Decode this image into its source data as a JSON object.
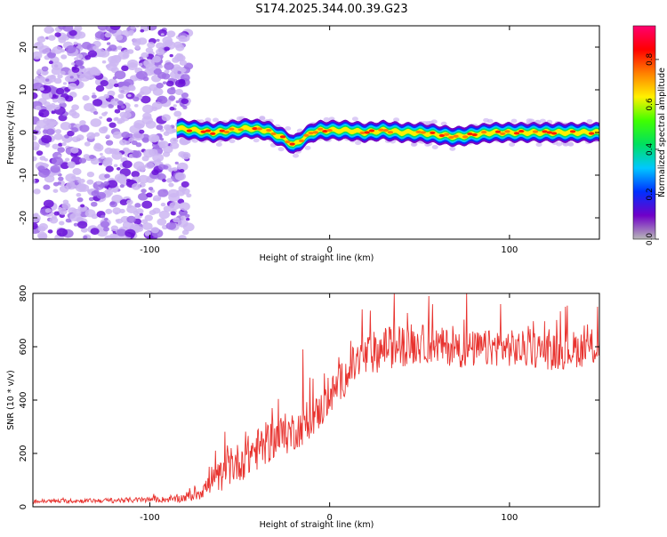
{
  "title": "S174.2025.344.00.39.G23",
  "colors": {
    "frame": "#000000",
    "snr_line": "#e8332f",
    "background": "#ffffff"
  },
  "chart_data": [
    {
      "type": "heatmap",
      "name": "spectrogram",
      "xlabel": "Height of straight line (km)",
      "ylabel": "Frequency (Hz)",
      "xlim": [
        -165,
        150
      ],
      "ylim": [
        -25,
        25
      ],
      "x_ticks": [
        -100,
        0,
        100
      ],
      "x_tick_labels": [
        "-100",
        "0",
        "100"
      ],
      "y_ticks": [
        -20,
        -10,
        0,
        10,
        20
      ],
      "y_tick_labels": [
        "-20",
        "-10",
        "0",
        "10",
        "20"
      ],
      "noise_region_x": [
        -165,
        -80
      ],
      "ridge": {
        "x": [
          -85,
          -75,
          -65,
          -55,
          -45,
          -35,
          -25,
          -20,
          -15,
          -10,
          -5,
          0,
          10,
          20,
          30,
          40,
          50,
          60,
          70,
          80,
          90,
          100,
          110,
          120,
          130,
          140,
          150
        ],
        "freq": [
          1,
          0.5,
          0,
          0.5,
          1,
          0.5,
          -1.5,
          -3,
          -1.5,
          0,
          0.5,
          0.5,
          0.5,
          0,
          0.5,
          0,
          0,
          -0.5,
          -1,
          -0.5,
          0,
          0,
          0,
          0,
          0,
          0,
          0
        ]
      },
      "colorbar": {
        "label": "Normalized spectral amplitude",
        "range": [
          0,
          0.95
        ],
        "ticks": [
          0,
          0.2,
          0.4,
          0.6,
          0.8
        ],
        "tick_labels": [
          "0.0",
          "0.2",
          "0.4",
          "0.6",
          "0.8"
        ],
        "colormap": [
          "#b8b8b8",
          "#7000c8",
          "#0030ff",
          "#00c8ff",
          "#00e060",
          "#40ff00",
          "#fff000",
          "#ff8000",
          "#ff0000",
          "#ff0070"
        ]
      }
    },
    {
      "type": "line",
      "name": "snr",
      "xlabel": "Height of straight line (km)",
      "ylabel": "SNR (10 * v/v)",
      "xlim": [
        -165,
        150
      ],
      "ylim": [
        0,
        800
      ],
      "x_ticks": [
        -100,
        0,
        100
      ],
      "x_tick_labels": [
        "-100",
        "0",
        "100"
      ],
      "y_ticks": [
        0,
        200,
        400,
        600,
        800
      ],
      "y_tick_labels": [
        "0",
        "200",
        "400",
        "600",
        "800"
      ],
      "series": [
        {
          "name": "SNR",
          "envelope_x": [
            -165,
            -140,
            -110,
            -85,
            -75,
            -65,
            -55,
            -45,
            -35,
            -25,
            -15,
            -5,
            5,
            15,
            25,
            35,
            45,
            55,
            65,
            75,
            85,
            95,
            105,
            115,
            125,
            135,
            150
          ],
          "envelope_y": [
            20,
            22,
            25,
            28,
            45,
            90,
            150,
            190,
            240,
            270,
            300,
            360,
            460,
            540,
            580,
            600,
            610,
            610,
            600,
            590,
            590,
            600,
            590,
            590,
            580,
            590,
            600
          ],
          "noise_amplitude": [
            8,
            8,
            10,
            12,
            25,
            50,
            70,
            80,
            80,
            80,
            70,
            70,
            70,
            80,
            80,
            80,
            80,
            70,
            70,
            70,
            70,
            70,
            70,
            70,
            70,
            70,
            70
          ],
          "peaks": [
            [
              -67,
              150
            ],
            [
              -57,
              230
            ],
            [
              -43,
              240
            ],
            [
              -32,
              370
            ],
            [
              -15,
              590
            ],
            [
              -3,
              500
            ],
            [
              18,
              740
            ],
            [
              36,
              800
            ],
            [
              55,
              790
            ],
            [
              76,
              805
            ],
            [
              95,
              760
            ],
            [
              131,
              750
            ],
            [
              149,
              750
            ]
          ]
        }
      ]
    }
  ]
}
